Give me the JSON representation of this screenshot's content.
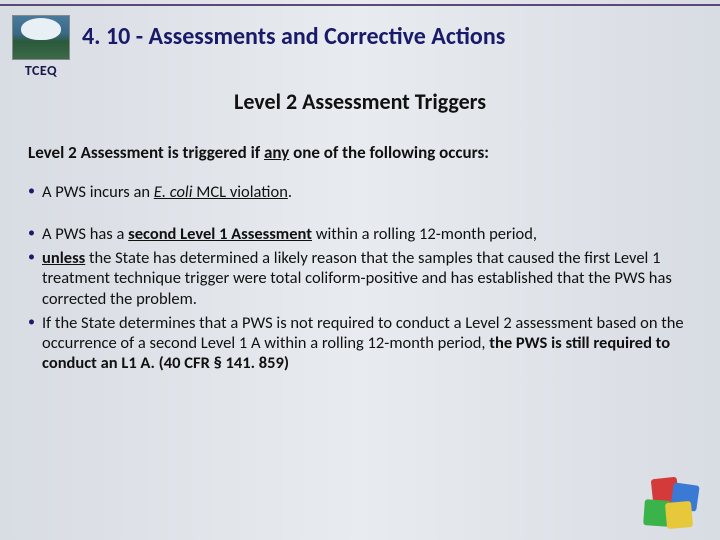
{
  "colors": {
    "title": "#1a1a6a",
    "text": "#111111",
    "bullet": "#1a1a6a",
    "bg_gradient": [
      "#d8dce3",
      "#e8ebef",
      "#d8dce3"
    ],
    "puzzle": [
      "#d43a3a",
      "#3a7ad4",
      "#3ab44a",
      "#e6c83a"
    ]
  },
  "logo": {
    "org": "TCEQ"
  },
  "title": "4. 10 - Assessments and Corrective Actions",
  "subtitle": "Level 2 Assessment Triggers",
  "intro": {
    "pre": "Level 2 Assessment is triggered if ",
    "underlined": "any",
    "post": " one of the following occurs:"
  },
  "bullets": [
    {
      "parts": [
        {
          "t": "A PWS incurs an "
        },
        {
          "t": "E. coli",
          "italic": true,
          "underline": true
        },
        {
          "t": " MCL violation",
          "underline": true
        },
        {
          "t": "."
        }
      ],
      "gap_after": true
    },
    {
      "parts": [
        {
          "t": "A PWS has a "
        },
        {
          "t": "second Level 1 Assessment",
          "bold": true,
          "underline": true
        },
        {
          "t": " within a rolling 12-month period,"
        }
      ]
    },
    {
      "parts": [
        {
          "t": "unless",
          "bold": true,
          "underline": true
        },
        {
          "t": " the State has determined a likely reason that the samples that caused the first Level 1 treatment technique trigger were total coliform-positive and has established that the PWS has corrected the problem."
        }
      ]
    },
    {
      "parts": [
        {
          "t": "If the State determines that a PWS is not required to conduct a Level 2 assessment based on the occurrence of a second Level 1 A within a rolling 12-month period, "
        },
        {
          "t": "the PWS is still required to conduct an L1 A. (40 CFR § 141. 859)",
          "bold": true
        }
      ]
    }
  ]
}
